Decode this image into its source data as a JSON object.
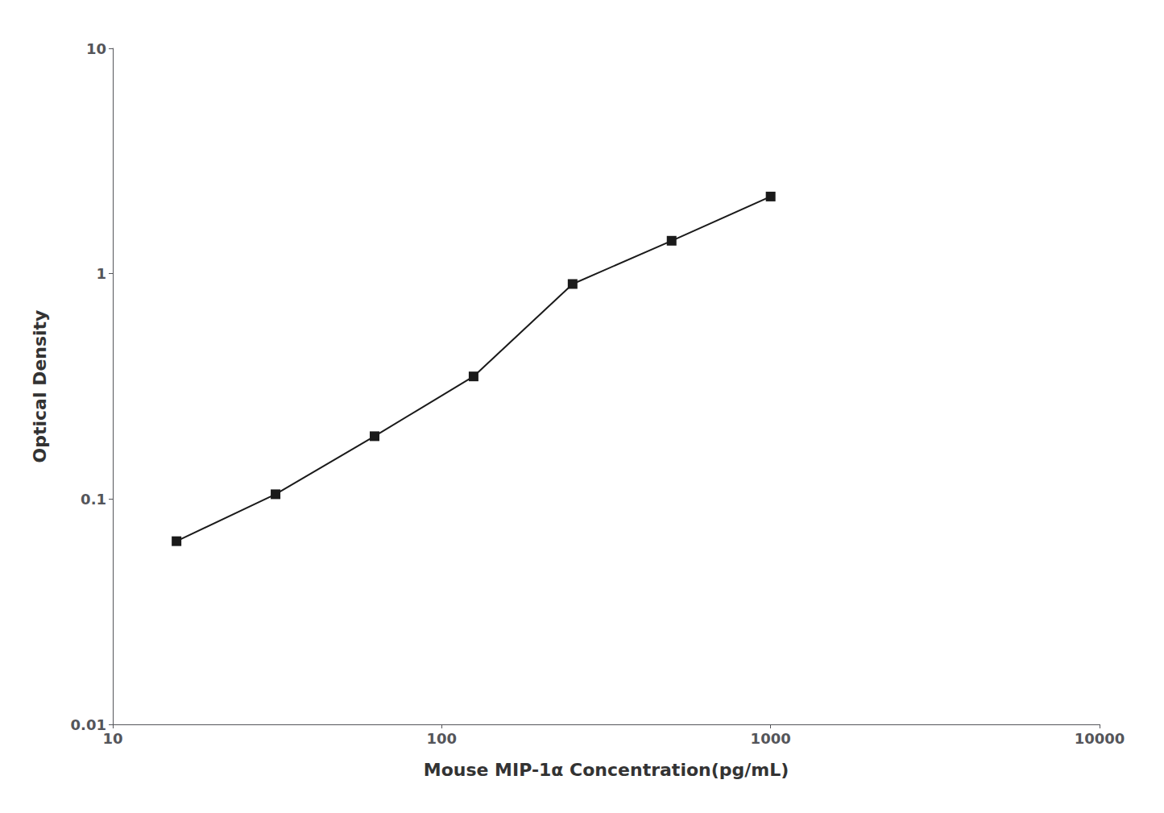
{
  "chart_data": {
    "type": "line",
    "xlabel": "Mouse MIP-1α Concentration(pg/mL)",
    "ylabel": "Optical Density",
    "x": [
      15.625,
      31.25,
      62.5,
      125,
      250,
      500,
      1000
    ],
    "values": [
      0.065,
      0.105,
      0.19,
      0.35,
      0.9,
      1.4,
      2.2
    ],
    "color": "#1a1a1a",
    "marker": "square",
    "log": true,
    "xlim": [
      10,
      10000
    ],
    "ylim": [
      0.01,
      10
    ],
    "xticks": [
      10,
      100,
      1000,
      10000
    ],
    "yticks": [
      0.01,
      0.1,
      1,
      10
    ],
    "grid": false
  }
}
